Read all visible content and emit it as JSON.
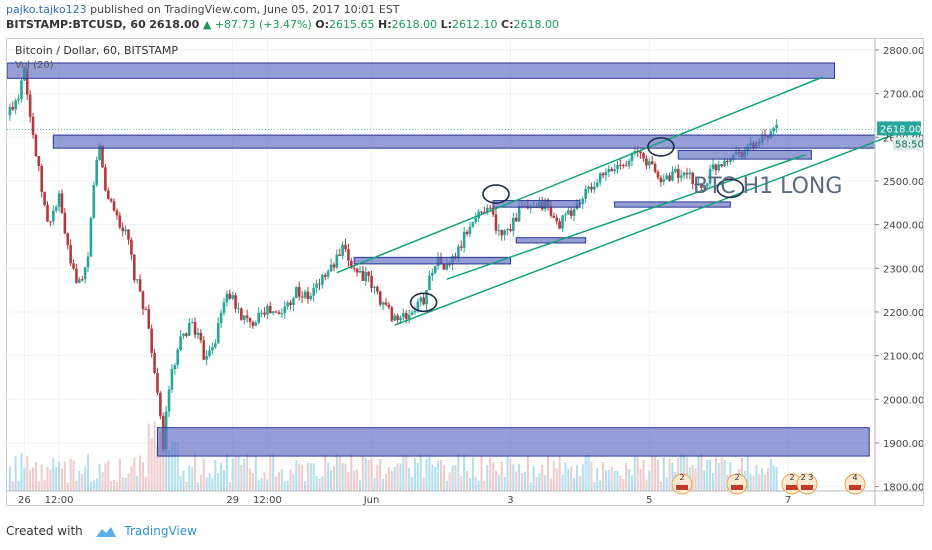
{
  "header": {
    "author": "pajko.tajko123",
    "published": "published on TradingView.com, June 05, 2017 10:01 EST",
    "symbol": "BITSTAMP:BTCUSD, 60",
    "last": "2618.00",
    "change": "+87.73 (+3.47%)",
    "o_label": "O:",
    "o": "2615.65",
    "h_label": "H:",
    "h": "2618.00",
    "l_label": "L:",
    "l": "2612.10",
    "c_label": "C:",
    "c": "2618.00"
  },
  "footer": {
    "created_with": "Created with",
    "brand": "TradingView"
  },
  "chart_data": {
    "type": "candlestick",
    "title": "Bitcoin / Dollar, 60, BITSTAMP",
    "indicator_label": "Vol (20)",
    "annotation": "BTC H1 LONG",
    "y_ticks": [
      1800,
      1900,
      2000,
      2100,
      2200,
      2300,
      2400,
      2500,
      2600,
      2700,
      2800
    ],
    "y_range": [
      1790,
      2825
    ],
    "x_ticks": [
      "26",
      "12:00",
      "29",
      "12:00",
      "Jun",
      "3",
      "5",
      "7"
    ],
    "x_tick_hours": [
      2,
      14,
      74,
      86,
      122,
      170,
      218,
      266
    ],
    "x_range_hours": [
      -4,
      296
    ],
    "price_label": "2618.00",
    "countdown_label": "58:50",
    "waypoints": [
      [
        -4,
        2650
      ],
      [
        0,
        2700
      ],
      [
        2,
        2770
      ],
      [
        4,
        2650
      ],
      [
        6,
        2560
      ],
      [
        10,
        2400
      ],
      [
        14,
        2460
      ],
      [
        18,
        2300
      ],
      [
        22,
        2260
      ],
      [
        24,
        2320
      ],
      [
        26,
        2500
      ],
      [
        28,
        2580
      ],
      [
        30,
        2480
      ],
      [
        34,
        2420
      ],
      [
        38,
        2360
      ],
      [
        40,
        2280
      ],
      [
        44,
        2200
      ],
      [
        46,
        2120
      ],
      [
        48,
        2000
      ],
      [
        50,
        1900
      ],
      [
        52,
        2030
      ],
      [
        56,
        2130
      ],
      [
        60,
        2180
      ],
      [
        64,
        2100
      ],
      [
        68,
        2140
      ],
      [
        72,
        2250
      ],
      [
        76,
        2200
      ],
      [
        80,
        2170
      ],
      [
        84,
        2210
      ],
      [
        90,
        2190
      ],
      [
        96,
        2250
      ],
      [
        100,
        2230
      ],
      [
        104,
        2270
      ],
      [
        108,
        2300
      ],
      [
        112,
        2340
      ],
      [
        116,
        2300
      ],
      [
        120,
        2280
      ],
      [
        124,
        2240
      ],
      [
        128,
        2200
      ],
      [
        132,
        2180
      ],
      [
        136,
        2200
      ],
      [
        140,
        2230
      ],
      [
        144,
        2320
      ],
      [
        148,
        2300
      ],
      [
        152,
        2340
      ],
      [
        156,
        2400
      ],
      [
        160,
        2430
      ],
      [
        162,
        2450
      ],
      [
        166,
        2380
      ],
      [
        170,
        2400
      ],
      [
        174,
        2440
      ],
      [
        178,
        2430
      ],
      [
        182,
        2450
      ],
      [
        186,
        2400
      ],
      [
        190,
        2420
      ],
      [
        196,
        2470
      ],
      [
        200,
        2500
      ],
      [
        206,
        2530
      ],
      [
        210,
        2550
      ],
      [
        214,
        2565
      ],
      [
        218,
        2540
      ],
      [
        222,
        2500
      ],
      [
        226,
        2520
      ],
      [
        230,
        2510
      ],
      [
        234,
        2500
      ],
      [
        236,
        2480
      ],
      [
        240,
        2530
      ],
      [
        246,
        2560
      ],
      [
        252,
        2575
      ],
      [
        256,
        2590
      ],
      [
        260,
        2600
      ],
      [
        262,
        2618
      ]
    ],
    "zones": [
      {
        "from_hour": -4,
        "to_hour": 282,
        "low": 2735,
        "high": 2770
      },
      {
        "from_hour": 12,
        "to_hour": 296,
        "low": 2575,
        "high": 2605
      },
      {
        "from_hour": 48,
        "to_hour": 294,
        "low": 1870,
        "high": 1935
      },
      {
        "from_hour": 116,
        "to_hour": 170,
        "low": 2310,
        "high": 2325
      },
      {
        "from_hour": 164,
        "to_hour": 194,
        "low": 2440,
        "high": 2455
      },
      {
        "from_hour": 172,
        "to_hour": 196,
        "low": 2358,
        "high": 2370
      },
      {
        "from_hour": 206,
        "to_hour": 246,
        "low": 2440,
        "high": 2452
      },
      {
        "from_hour": 228,
        "to_hour": 274,
        "low": 2550,
        "high": 2570
      }
    ],
    "channel_lines": [
      {
        "from": [
          110,
          2290
        ],
        "to": [
          278,
          2738
        ]
      },
      {
        "from": [
          130,
          2170
        ],
        "to": [
          306,
          2615
        ]
      },
      {
        "from": [
          148,
          2275
        ],
        "to": [
          272,
          2560
        ]
      }
    ],
    "ellipses": [
      {
        "hour": 165,
        "price": 2470
      },
      {
        "hour": 140,
        "price": 2222
      },
      {
        "hour": 222,
        "price": 2578
      },
      {
        "hour": 246,
        "price": 2483
      }
    ],
    "event_badges": [
      "2",
      "2",
      "2",
      "2 3",
      "4"
    ],
    "colors": {
      "up": "#26a69a",
      "down": "#b23a3a",
      "zone_fill": "#5c6bc0",
      "zone_stroke": "#283593",
      "channel": "#12a37a",
      "volume": "#8fd0e8",
      "price_tag": "#26a69a"
    }
  }
}
